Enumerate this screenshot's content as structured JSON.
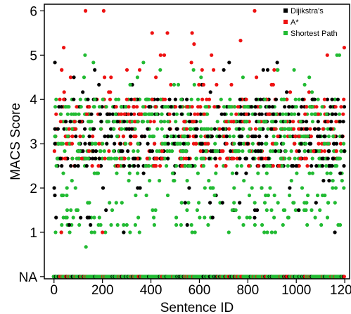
{
  "chart_data": {
    "type": "scatter",
    "xlabel": "Sentence ID",
    "ylabel": "MACS Score",
    "xlim": [
      -40,
      1220
    ],
    "ylim": [
      -0.05,
      6.15
    ],
    "x_ticks": [
      0,
      200,
      400,
      600,
      800,
      1000,
      1200
    ],
    "x_tick_labels": [
      "0",
      "200",
      "400",
      "600",
      "800",
      "1000",
      "1200"
    ],
    "y_ticks": [
      0,
      1,
      2,
      3,
      4,
      5,
      6
    ],
    "y_tick_labels": [
      "NA",
      "1",
      "2",
      "3",
      "4",
      "5",
      "6"
    ],
    "grid": false,
    "legend_position": "top-right",
    "series": [
      {
        "name": "Dijikstra's",
        "color": "#000000"
      },
      {
        "name": "A*",
        "color": "#ee1111"
      },
      {
        "name": "Shortest Path",
        "color": "#22bb33"
      }
    ],
    "sample_points": [
      {
        "series": "A*",
        "x": 130,
        "y": 6.0
      },
      {
        "series": "A*",
        "x": 205,
        "y": 6.0
      },
      {
        "series": "A*",
        "x": 828,
        "y": 6.0
      },
      {
        "series": "A*",
        "x": 405,
        "y": 5.5
      },
      {
        "series": "A*",
        "x": 468,
        "y": 5.5
      },
      {
        "series": "A*",
        "x": 570,
        "y": 5.5
      },
      {
        "series": "A*",
        "x": 578,
        "y": 5.25
      },
      {
        "series": "A*",
        "x": 770,
        "y": 5.33
      },
      {
        "series": "A*",
        "x": 40,
        "y": 5.17
      },
      {
        "series": "A*",
        "x": 1198,
        "y": 5.17
      },
      {
        "series": "A*",
        "x": 440,
        "y": 5.0
      },
      {
        "series": "A*",
        "x": 455,
        "y": 5.0
      },
      {
        "series": "A*",
        "x": 650,
        "y": 5.0
      },
      {
        "series": "A*",
        "x": 1128,
        "y": 5.0
      },
      {
        "series": "Shortest Path",
        "x": 128,
        "y": 5.0
      },
      {
        "series": "Shortest Path",
        "x": 1168,
        "y": 5.0
      },
      {
        "series": "Shortest Path",
        "x": 1178,
        "y": 5.0
      },
      {
        "series": "A*",
        "x": 30,
        "y": 1.0
      },
      {
        "series": "A*",
        "x": 200,
        "y": 1.0
      },
      {
        "series": "Shortest Path",
        "x": 132,
        "y": 0.67
      },
      {
        "series": "Black",
        "x": 110,
        "y": 1.33
      },
      {
        "series": "Dijikstra's",
        "x": 828,
        "y": 1.33
      }
    ],
    "na_row_note": ""
  }
}
